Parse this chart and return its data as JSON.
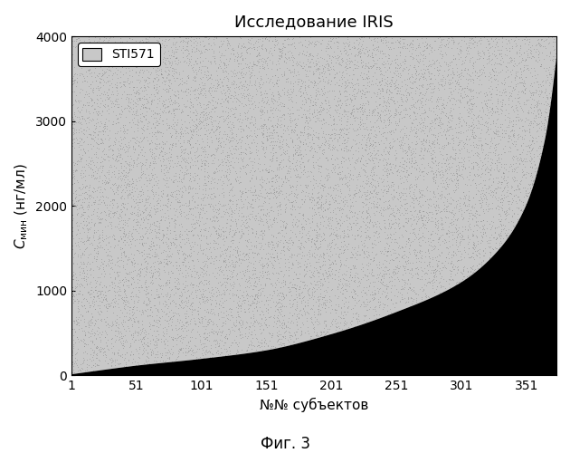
{
  "title": "Исследование IRIS",
  "xlabel": "№№ субъектов",
  "caption": "Фиг. 3",
  "legend_label": "STI571",
  "n_subjects": 374,
  "y_max": 4000,
  "x_ticks": [
    1,
    51,
    101,
    151,
    201,
    251,
    301,
    351
  ],
  "gray_color": "#c8c8c8",
  "black_color": "#000000",
  "background_color": "#ffffff",
  "title_fontsize": 13,
  "axis_fontsize": 11,
  "tick_fontsize": 10,
  "caption_fontsize": 12,
  "legend_fontsize": 10,
  "curve_points_x": [
    1,
    20,
    50,
    100,
    150,
    200,
    250,
    300,
    330,
    350,
    365,
    374
  ],
  "curve_points_y": [
    20,
    60,
    120,
    200,
    300,
    490,
    750,
    1100,
    1500,
    2000,
    2800,
    3800
  ]
}
